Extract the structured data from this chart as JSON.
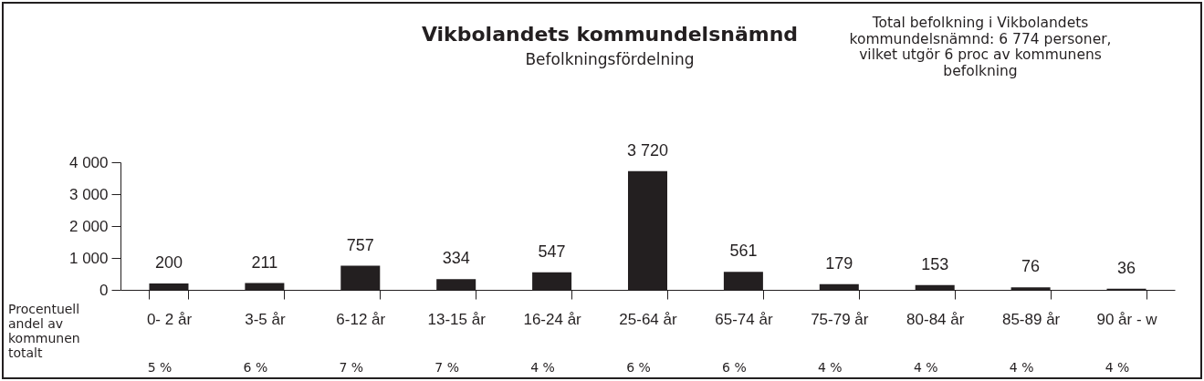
{
  "chart_data": {
    "type": "bar",
    "title": "Vikbolandets kommundelsnämnd",
    "subtitle": "Befolkningsfördelning",
    "categories": [
      "0- 2 år",
      "3-5 år",
      "6-12 år",
      "13-15 år",
      "16-24 år",
      "25-64 år",
      "65-74 år",
      "75-79 år",
      "80-84 år",
      "85-89 år",
      "90 år - w"
    ],
    "values": [
      200,
      211,
      757,
      334,
      547,
      3720,
      561,
      179,
      153,
      76,
      36
    ],
    "value_labels": [
      "200",
      "211",
      "757",
      "334",
      "547",
      "3 720",
      "561",
      "179",
      "153",
      "76",
      "36"
    ],
    "color": "#231f20",
    "ylim": [
      0,
      4000
    ],
    "yticks": [
      {
        "value": 0,
        "label": "0"
      },
      {
        "value": 1000,
        "label": "1 000"
      },
      {
        "value": 2000,
        "label": "2 000"
      },
      {
        "value": 3000,
        "label": "3 000"
      },
      {
        "value": 4000,
        "label": "4 000"
      }
    ],
    "grid": false,
    "annotations": [
      "Total befolkning i Vikbolandets kommundelsnämnd: 6 774 personer, vilket utgör 6 proc av kommunens befolkning",
      "Procentuell andel av kommunen totalt",
      "5 %",
      "6 %",
      "7 %",
      "7 %",
      "4 %",
      "6 %",
      "6 %",
      "4 %",
      "4 %",
      "4 %",
      "4 %"
    ]
  }
}
